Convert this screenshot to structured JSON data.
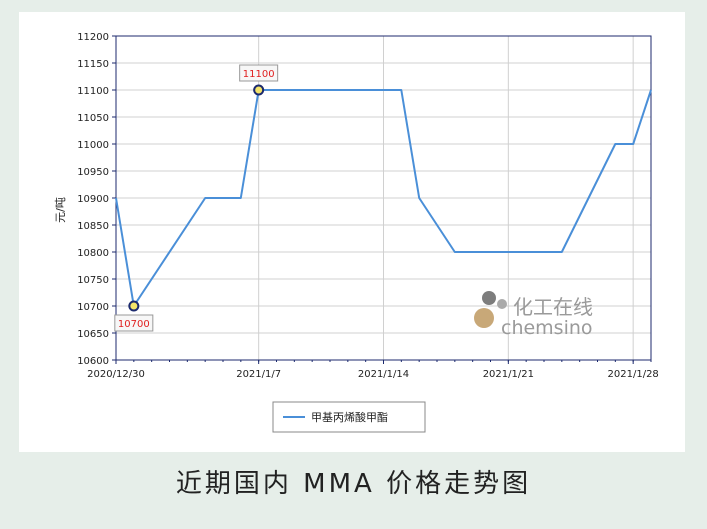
{
  "caption": "近期国内 MMA 价格走势图",
  "watermark": {
    "cn": "化工在线",
    "en": "chemsino"
  },
  "colors": {
    "line": "#4a8fd8",
    "marker_fill": "#f4e46a",
    "marker_stroke": "#1c2a6e",
    "grid": "#d0d0d0",
    "axis": "#1c2a6e",
    "label_text": "#e02020"
  },
  "chart_data": {
    "type": "line",
    "ylabel": "元/吨",
    "ylim": [
      10600,
      11200
    ],
    "ytick_step": 50,
    "xtick_labels": [
      "2020/12/30",
      "2021/1/7",
      "2021/1/14",
      "2021/1/21",
      "2021/1/28"
    ],
    "xtick_dates": [
      "2020-12-30",
      "2021-01-07",
      "2021-01-14",
      "2021-01-21",
      "2021-01-28"
    ],
    "xlim": [
      "2020-12-30",
      "2021-01-29"
    ],
    "grid": true,
    "legend": "bottom-center",
    "series": [
      {
        "name": "甲基丙烯酸甲酯",
        "points": [
          [
            "2020-12-30",
            10900
          ],
          [
            "2020-12-31",
            10700
          ],
          [
            "2021-01-04",
            10900
          ],
          [
            "2021-01-06",
            10900
          ],
          [
            "2021-01-07",
            11100
          ],
          [
            "2021-01-15",
            11100
          ],
          [
            "2021-01-16",
            10900
          ],
          [
            "2021-01-18",
            10800
          ],
          [
            "2021-01-24",
            10800
          ],
          [
            "2021-01-27",
            11000
          ],
          [
            "2021-01-28",
            11000
          ],
          [
            "2021-01-29",
            11100
          ]
        ]
      }
    ],
    "annotations": [
      {
        "date": "2020-12-31",
        "value": 10700,
        "text": "10700",
        "position": "below"
      },
      {
        "date": "2021-01-07",
        "value": 11100,
        "text": "11100",
        "position": "above"
      }
    ]
  }
}
